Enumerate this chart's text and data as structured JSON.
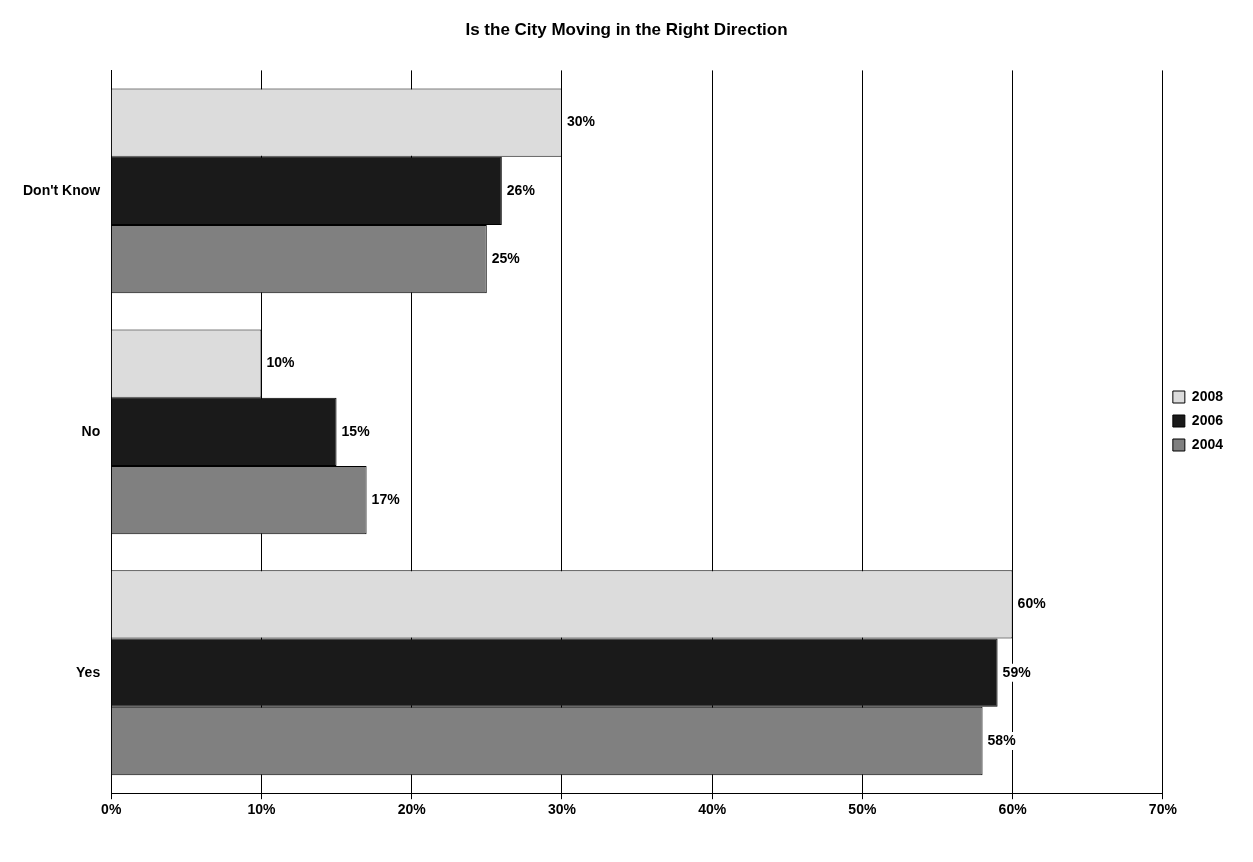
{
  "chart_data": {
    "type": "bar",
    "orientation": "horizontal",
    "title": "Is the City Moving in the Right Direction",
    "categories": [
      "Don't Know",
      "No",
      "Yes"
    ],
    "series": [
      {
        "name": "2008",
        "color": "#dcdcdc",
        "values": [
          30,
          10,
          60
        ],
        "value_labels": [
          "30%",
          "10%",
          "60%"
        ]
      },
      {
        "name": "2006",
        "color": "#1a1a1a",
        "values": [
          26,
          15,
          59
        ],
        "value_labels": [
          "26%",
          "15%",
          "59%"
        ]
      },
      {
        "name": "2004",
        "color": "#808080",
        "values": [
          25,
          17,
          58
        ],
        "value_labels": [
          "25%",
          "17%",
          "58%"
        ]
      }
    ],
    "xlim": [
      0,
      70
    ],
    "xticks": [
      {
        "value": 0,
        "label": "0%"
      },
      {
        "value": 10,
        "label": "10%"
      },
      {
        "value": 20,
        "label": "20%"
      },
      {
        "value": 30,
        "label": "30%"
      },
      {
        "value": 40,
        "label": "40%"
      },
      {
        "value": 50,
        "label": "50%"
      },
      {
        "value": 60,
        "label": "60%"
      },
      {
        "value": 70,
        "label": "70%"
      }
    ],
    "grid": "x",
    "legend": "right"
  }
}
